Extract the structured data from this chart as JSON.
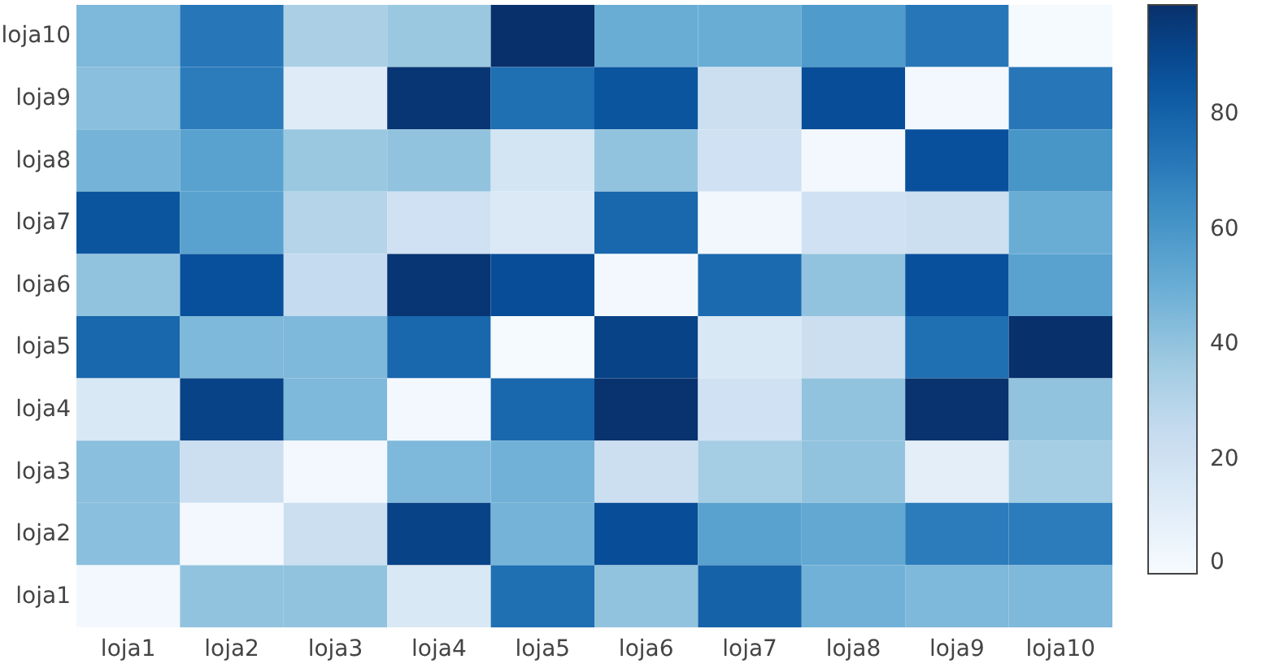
{
  "chart_data": {
    "type": "heatmap",
    "categories": [
      "loja1",
      "loja2",
      "loja3",
      "loja4",
      "loja5",
      "loja6",
      "loja7",
      "loja8",
      "loja9",
      "loja10"
    ],
    "y_categories": [
      "loja10",
      "loja9",
      "loja8",
      "loja7",
      "loja6",
      "loja5",
      "loja4",
      "loja3",
      "loja2",
      "loja1"
    ],
    "cells": [
      [
        45,
        72,
        33,
        38,
        99,
        50,
        50,
        58,
        72,
        1
      ],
      [
        42,
        70,
        12,
        97,
        75,
        85,
        22,
        88,
        2,
        72
      ],
      [
        47,
        55,
        38,
        40,
        18,
        40,
        20,
        2,
        87,
        60
      ],
      [
        85,
        55,
        30,
        20,
        14,
        78,
        3,
        20,
        22,
        50
      ],
      [
        40,
        87,
        25,
        97,
        88,
        2,
        77,
        40,
        87,
        55
      ],
      [
        78,
        45,
        45,
        78,
        1,
        92,
        15,
        22,
        75,
        99
      ],
      [
        15,
        92,
        45,
        2,
        78,
        98,
        20,
        40,
        98,
        40
      ],
      [
        42,
        22,
        2,
        45,
        48,
        22,
        35,
        40,
        10,
        35
      ],
      [
        42,
        2,
        22,
        92,
        47,
        88,
        55,
        52,
        70,
        70
      ],
      [
        2,
        40,
        40,
        15,
        75,
        40,
        80,
        48,
        45,
        45
      ]
    ],
    "clim": [
      0,
      99
    ],
    "cticks": [
      0,
      20,
      40,
      60,
      80
    ]
  }
}
